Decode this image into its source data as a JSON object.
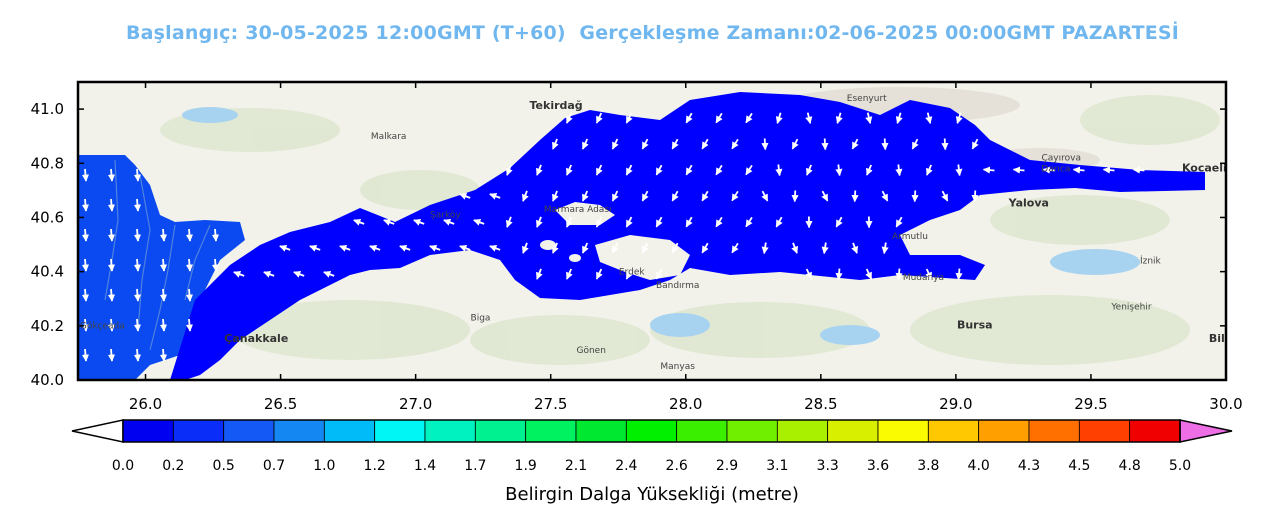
{
  "title": "Başlangıç: 30-05-2025 12:00GMT (T+60)  Gerçekleşme Zamanı:02-06-2025 00:00GMT PAZARTESİ",
  "map": {
    "lon_range": [
      25.75,
      30.0
    ],
    "lat_range": [
      40.0,
      41.1
    ],
    "x_ticks": [
      "26.0",
      "26.5",
      "27.0",
      "27.5",
      "28.0",
      "28.5",
      "29.0",
      "29.5",
      "30.0"
    ],
    "y_ticks": [
      "41.0",
      "40.8",
      "40.6",
      "40.4",
      "40.2",
      "40.0"
    ],
    "places": [
      {
        "name": "Tekirdağ",
        "lon": 27.52,
        "lat": 41.0,
        "bold": true
      },
      {
        "name": "Malkara",
        "lon": 26.9,
        "lat": 40.89,
        "bold": false
      },
      {
        "name": "Esenyurt",
        "lon": 28.67,
        "lat": 41.03,
        "bold": false
      },
      {
        "name": "Şarköy",
        "lon": 27.11,
        "lat": 40.6,
        "bold": false
      },
      {
        "name": "Çayırova",
        "lon": 29.39,
        "lat": 40.81,
        "bold": false
      },
      {
        "name": "Darıca",
        "lon": 29.37,
        "lat": 40.77,
        "bold": false
      },
      {
        "name": "Kocaeli",
        "lon": 29.92,
        "lat": 40.77,
        "bold": true
      },
      {
        "name": "Yalova",
        "lon": 29.27,
        "lat": 40.64,
        "bold": true
      },
      {
        "name": "Armutlu",
        "lon": 28.83,
        "lat": 40.52,
        "bold": false
      },
      {
        "name": "Erdek",
        "lon": 27.8,
        "lat": 40.39,
        "bold": false
      },
      {
        "name": "Bandırma",
        "lon": 27.97,
        "lat": 40.34,
        "bold": false
      },
      {
        "name": "Mudanya",
        "lon": 28.88,
        "lat": 40.37,
        "bold": false
      },
      {
        "name": "Bursa",
        "lon": 29.07,
        "lat": 40.19,
        "bold": true
      },
      {
        "name": "Çanakkale",
        "lon": 26.41,
        "lat": 40.14,
        "bold": true
      },
      {
        "name": "Gökçeada",
        "lon": 25.84,
        "lat": 40.19,
        "bold": false
      },
      {
        "name": "Biga",
        "lon": 27.24,
        "lat": 40.22,
        "bold": false
      },
      {
        "name": "Gönen",
        "lon": 27.65,
        "lat": 40.1,
        "bold": false
      },
      {
        "name": "Manyas",
        "lon": 27.97,
        "lat": 40.04,
        "bold": false
      },
      {
        "name": "Yenişehir",
        "lon": 29.65,
        "lat": 40.26,
        "bold": false
      },
      {
        "name": "İznik",
        "lon": 29.72,
        "lat": 40.43,
        "bold": false
      },
      {
        "name": "Bile",
        "lon": 29.98,
        "lat": 40.14,
        "bold": true
      },
      {
        "name": "Marmara Adası",
        "lon": 27.6,
        "lat": 40.62,
        "bold": false
      }
    ]
  },
  "colorbar": {
    "title": "Belirgin Dalga Yüksekliği (metre)",
    "labels": [
      "0.0",
      "0.2",
      "0.5",
      "0.7",
      "1.0",
      "1.2",
      "1.4",
      "1.7",
      "1.9",
      "2.1",
      "2.4",
      "2.6",
      "2.9",
      "3.1",
      "3.3",
      "3.6",
      "3.8",
      "4.0",
      "4.3",
      "4.5",
      "4.8",
      "5.0"
    ],
    "colors": [
      "#0000f0",
      "#0a2ef8",
      "#1458f5",
      "#1487f3",
      "#00bbf8",
      "#00f5f5",
      "#00f2c0",
      "#00f190",
      "#00f260",
      "#00e830",
      "#00f000",
      "#3af000",
      "#70f000",
      "#a8f000",
      "#d8f000",
      "#fafa00",
      "#ffc800",
      "#ffa000",
      "#ff7000",
      "#ff4000",
      "#f00000"
    ],
    "under_color": "#ffffff",
    "over_color": "#ee6ee6"
  },
  "colors": {
    "sea_wave": "#0000ff",
    "sea_strait": "#0a4af0",
    "land": "#f2f2ea",
    "arrow": "#ffffff"
  }
}
